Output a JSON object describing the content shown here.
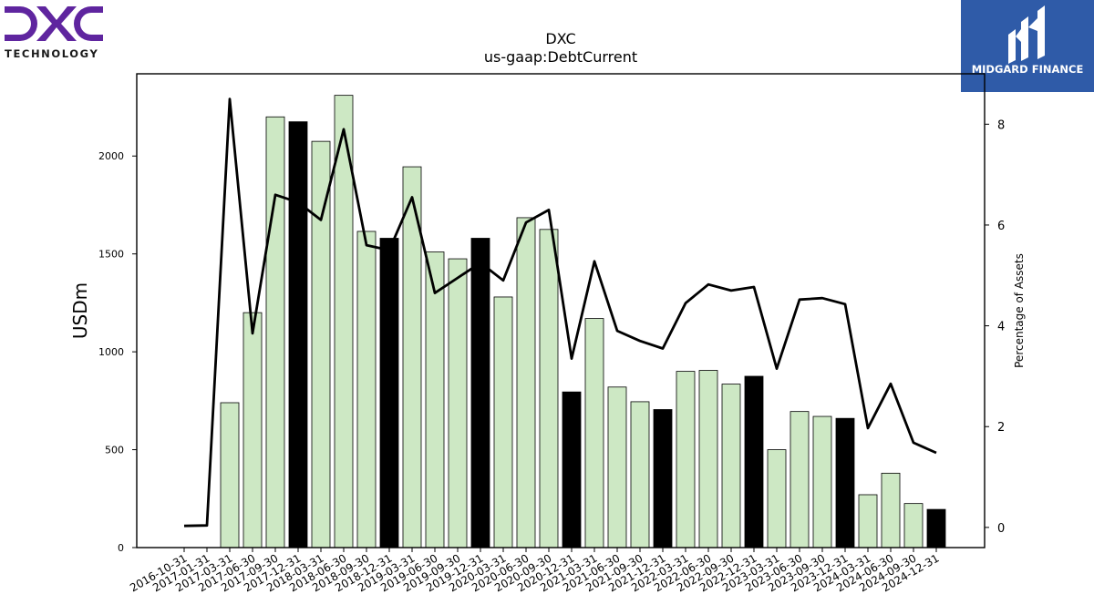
{
  "logos": {
    "left": {
      "name": "DXC",
      "subtitle": "TECHNOLOGY",
      "color": "#5f259f"
    },
    "right": {
      "name": "MIDGARD FINANCE",
      "background": "#2f5ba8"
    }
  },
  "chart_data": {
    "type": "bar",
    "title": "DXC",
    "subtitle": "us-gaap:DebtCurrent",
    "ylabel": "USDm",
    "y2label": "Percentage of Assets",
    "ylim": [
      0,
      2420
    ],
    "y2lim": [
      -0.4,
      9.0
    ],
    "yticks": [
      0,
      500,
      1000,
      1500,
      2000
    ],
    "y2ticks": [
      0,
      2,
      4,
      6,
      8
    ],
    "grid": false,
    "colors": {
      "bar_light": "#cde8c4",
      "bar_dark": "#000000",
      "line": "#000000"
    },
    "categories": [
      "2016-10-31",
      "2017-01-31",
      "2017-03-31",
      "2017-06-30",
      "2017-09-30",
      "2017-12-31",
      "2018-03-31",
      "2018-06-30",
      "2018-09-30",
      "2018-12-31",
      "2019-03-31",
      "2019-06-30",
      "2019-09-30",
      "2019-12-31",
      "2020-03-31",
      "2020-06-30",
      "2020-09-30",
      "2020-12-31",
      "2021-03-31",
      "2021-06-30",
      "2021-09-30",
      "2021-12-31",
      "2022-03-31",
      "2022-06-30",
      "2022-09-30",
      "2022-12-31",
      "2023-03-31",
      "2023-06-30",
      "2023-09-30",
      "2023-12-31",
      "2024-03-31",
      "2024-06-30",
      "2024-09-30",
      "2024-12-31"
    ],
    "series": [
      {
        "axis": "left",
        "type": "bar",
        "values": [
          0,
          0,
          740,
          1200,
          2200,
          2175,
          2075,
          2310,
          1615,
          1580,
          1945,
          1510,
          1475,
          1580,
          1280,
          1685,
          1625,
          795,
          1170,
          820,
          745,
          705,
          900,
          905,
          835,
          875,
          500,
          695,
          670,
          660,
          270,
          380,
          225,
          195
        ],
        "highlight": [
          false,
          false,
          false,
          false,
          false,
          true,
          false,
          false,
          false,
          true,
          false,
          false,
          false,
          true,
          false,
          false,
          false,
          true,
          false,
          false,
          false,
          true,
          false,
          false,
          false,
          true,
          false,
          false,
          false,
          true,
          false,
          false,
          false,
          true
        ]
      },
      {
        "axis": "right",
        "type": "line",
        "values": [
          0.03,
          0.04,
          8.5,
          3.85,
          6.6,
          6.45,
          6.1,
          7.9,
          5.6,
          5.5,
          6.55,
          4.65,
          4.95,
          5.25,
          4.9,
          6.05,
          6.3,
          3.35,
          5.28,
          3.9,
          3.7,
          3.55,
          4.45,
          4.82,
          4.7,
          4.77,
          3.15,
          4.52,
          4.55,
          4.43,
          1.97,
          2.85,
          1.68,
          1.48
        ]
      }
    ]
  }
}
